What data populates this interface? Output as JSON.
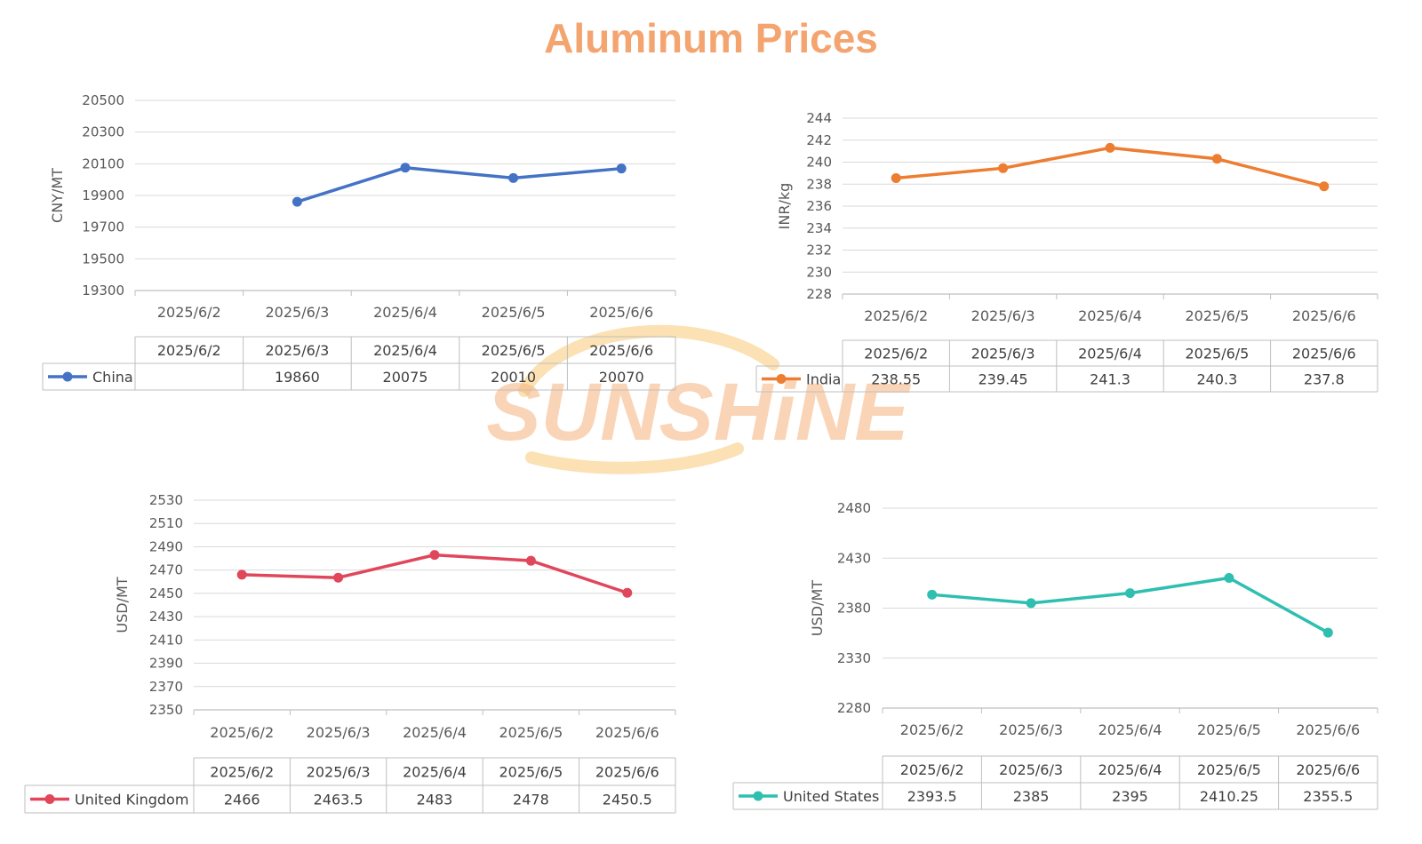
{
  "title": "Aluminum Prices",
  "watermark": "SUNSHiNE",
  "colors": {
    "title": "#f4a46f",
    "watermark": "#f6b27b",
    "watermark_arc": "#f9d79a",
    "grid": "#d9d9d9",
    "axis": "#bfbfbf"
  },
  "chart_data": [
    {
      "type": "line",
      "ylabel": "CNY/MT",
      "categories": [
        "2025/6/2",
        "2025/6/3",
        "2025/6/4",
        "2025/6/5",
        "2025/6/6"
      ],
      "yticks": [
        19300,
        19500,
        19700,
        19900,
        20100,
        20300,
        20500
      ],
      "ylim": [
        19300,
        20500
      ],
      "grid": true,
      "legend": "data-table",
      "series": [
        {
          "name": "China",
          "color": "#4472c4",
          "values": [
            null,
            19860,
            20075,
            20010,
            20070
          ],
          "labels": [
            "",
            "19860",
            "20075",
            "20010",
            "20070"
          ]
        }
      ]
    },
    {
      "type": "line",
      "ylabel": "INR/kg",
      "categories": [
        "2025/6/2",
        "2025/6/3",
        "2025/6/4",
        "2025/6/5",
        "2025/6/6"
      ],
      "yticks": [
        228,
        230,
        232,
        234,
        236,
        238,
        240,
        242,
        244
      ],
      "ylim": [
        228,
        244
      ],
      "grid": true,
      "legend": "data-table",
      "series": [
        {
          "name": "India",
          "color": "#ed7d31",
          "values": [
            238.55,
            239.45,
            241.3,
            240.3,
            237.8
          ],
          "labels": [
            "238.55",
            "239.45",
            "241.3",
            "240.3",
            "237.8"
          ]
        }
      ]
    },
    {
      "type": "line",
      "ylabel": "USD/MT",
      "categories": [
        "2025/6/2",
        "2025/6/3",
        "2025/6/4",
        "2025/6/5",
        "2025/6/6"
      ],
      "yticks": [
        2350,
        2370,
        2390,
        2410,
        2430,
        2450,
        2470,
        2490,
        2510,
        2530
      ],
      "ylim": [
        2350,
        2530
      ],
      "grid": true,
      "legend": "data-table",
      "series": [
        {
          "name": "United Kingdom",
          "color": "#e0475b",
          "values": [
            2466,
            2463.5,
            2483,
            2478,
            2450.5
          ],
          "labels": [
            "2466",
            "2463.5",
            "2483",
            "2478",
            "2450.5"
          ]
        }
      ]
    },
    {
      "type": "line",
      "ylabel": "USD/MT",
      "categories": [
        "2025/6/2",
        "2025/6/3",
        "2025/6/4",
        "2025/6/5",
        "2025/6/6"
      ],
      "yticks": [
        2280,
        2330,
        2380,
        2430,
        2480
      ],
      "ylim": [
        2280,
        2480
      ],
      "grid": true,
      "legend": "data-table",
      "series": [
        {
          "name": "United States",
          "color": "#2ebfb1",
          "values": [
            2393.5,
            2385,
            2395,
            2410.25,
            2355.5
          ],
          "labels": [
            "2393.5",
            "2385",
            "2395",
            "2410.25",
            "2355.5"
          ]
        }
      ]
    }
  ]
}
